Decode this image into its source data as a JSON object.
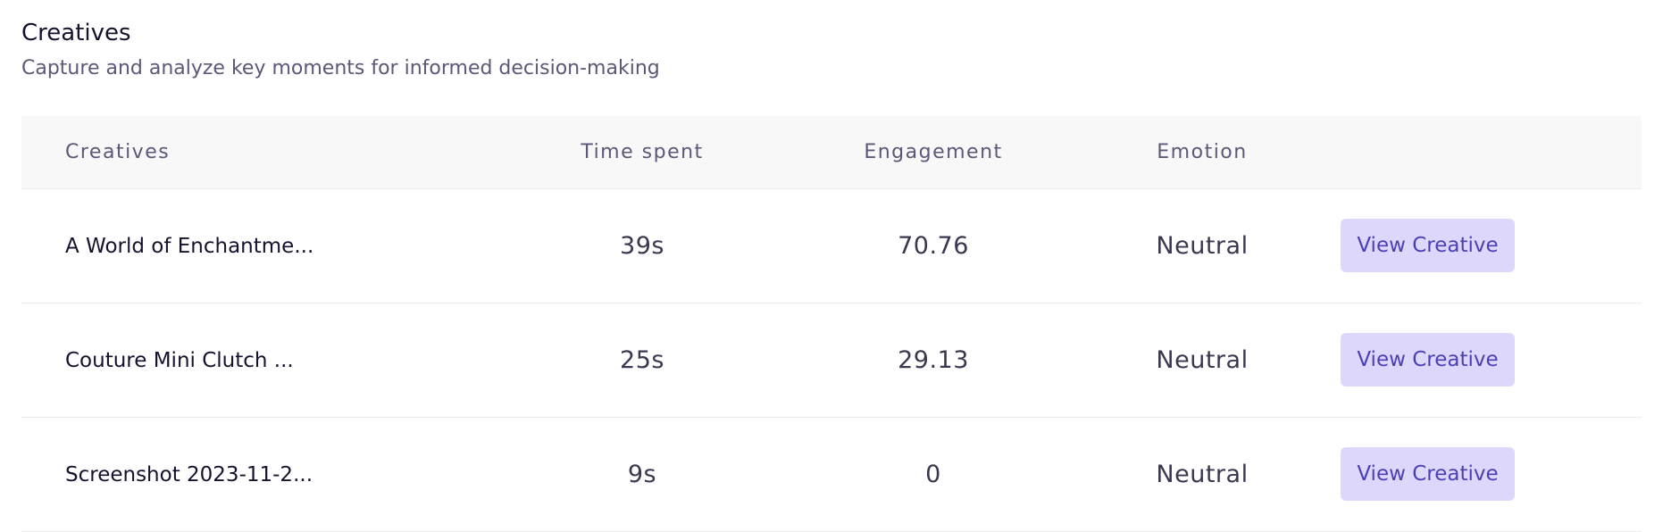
{
  "header": {
    "title": "Creatives",
    "subtitle": "Capture and analyze key moments for informed decision-making"
  },
  "table": {
    "columns": [
      "Creatives",
      "Time spent",
      "Engagement",
      "Emotion"
    ],
    "rows": [
      [
        "A World of Enchantme...",
        "39s",
        "70.76",
        "Neutral",
        "View Creative"
      ],
      [
        "Couture Mini Clutch ...",
        "25s",
        "29.13",
        "Neutral",
        "View Creative"
      ],
      [
        "Screenshot 2023-11-2...",
        "9s",
        "0",
        "Neutral",
        "View Creative"
      ]
    ]
  }
}
